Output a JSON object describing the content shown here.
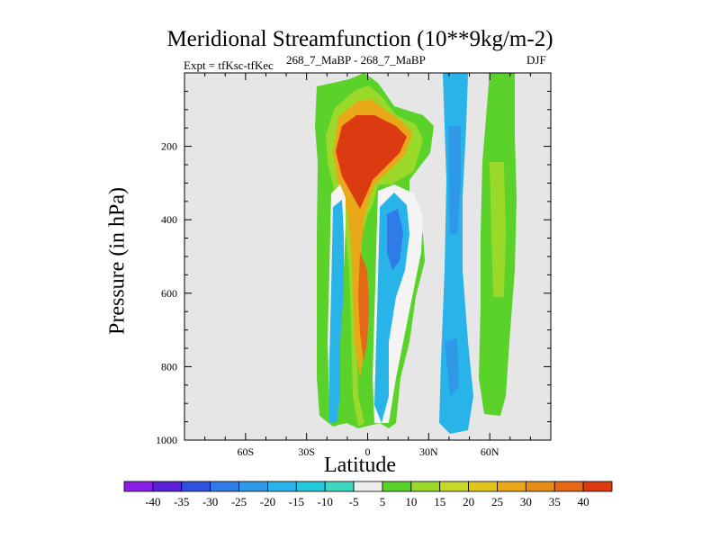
{
  "chart_data": {
    "type": "contour",
    "title": "Meridional Streamfunction (10**9kg/m-2)",
    "subtitle_left": "Expt = tfKsc-tfKec",
    "subtitle_center": "268_7_MaBP - 268_7_MaBP",
    "subtitle_right": "DJF",
    "xlabel": "Latitude",
    "ylabel": "Pressure (in hPa)",
    "xlim": [
      -90,
      90
    ],
    "ylim": [
      1000,
      0
    ],
    "x_ticks": [
      {
        "value": -60,
        "label": "60S"
      },
      {
        "value": -30,
        "label": "30S"
      },
      {
        "value": 0,
        "label": "0"
      },
      {
        "value": 30,
        "label": "30N"
      },
      {
        "value": 60,
        "label": "60N"
      }
    ],
    "y_ticks": [
      {
        "value": 200,
        "label": "200"
      },
      {
        "value": 400,
        "label": "400"
      },
      {
        "value": 600,
        "label": "600"
      },
      {
        "value": 800,
        "label": "800"
      },
      {
        "value": 1000,
        "label": "1000"
      }
    ],
    "contour_levels": [
      "-40",
      "-35",
      "-30",
      "-25",
      "-20",
      "-15",
      "-10",
      "-5",
      "5",
      "10",
      "15",
      "20",
      "25",
      "30",
      "35",
      "40"
    ],
    "colorbar_colors": [
      "#8a1ee8",
      "#5a20d8",
      "#3050e0",
      "#2f7be8",
      "#2f98e8",
      "#28b4e8",
      "#22c8dc",
      "#3ed8c0",
      "#eeeeee",
      "#5ad22a",
      "#9ad82a",
      "#c8d82a",
      "#e2c41e",
      "#e8a818",
      "#e68a18",
      "#e46818",
      "#dc3a10"
    ]
  }
}
